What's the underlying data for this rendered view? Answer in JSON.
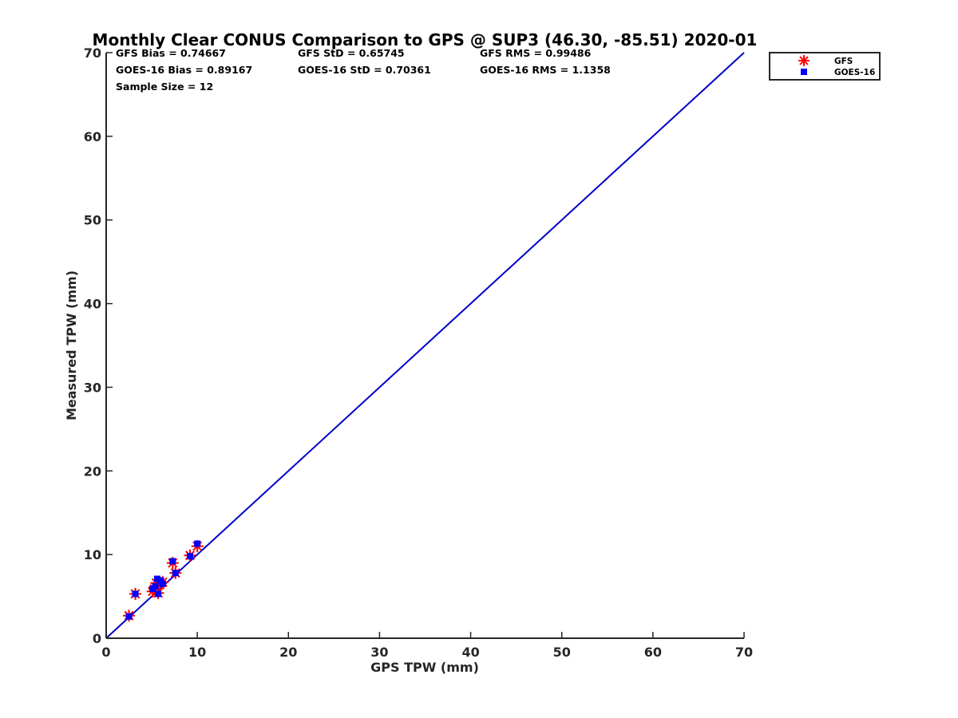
{
  "chart_data": {
    "type": "scatter",
    "title": "Monthly Clear CONUS Comparison to GPS @ SUP3 (46.30, -85.51) 2020-01",
    "xlabel": "GPS TPW (mm)",
    "ylabel": "Measured TPW (mm)",
    "xlim": [
      0,
      70
    ],
    "ylim": [
      0,
      70
    ],
    "x_ticks": [
      "0",
      "10",
      "20",
      "30",
      "40",
      "50",
      "60",
      "70"
    ],
    "y_ticks": [
      "0",
      "10",
      "20",
      "30",
      "40",
      "50",
      "60",
      "70"
    ],
    "grid": false,
    "legend_position": "top-right, outside plot",
    "stats": [
      [
        "GFS Bias = 0.74667",
        "GFS StD = 0.65745",
        "GFS RMS = 0.99486"
      ],
      [
        "GOES-16 Bias = 0.89167",
        "GOES-16 StD = 0.70361",
        "GOES-16 RMS = 1.1358"
      ],
      [
        "Sample Size = 12"
      ]
    ],
    "reference_line": {
      "name": "1:1",
      "from": [
        0,
        0
      ],
      "to": [
        70,
        70
      ],
      "color": "#0000cc"
    },
    "series": [
      {
        "name": "GFS",
        "marker": "asterisk",
        "color": "#ff0000",
        "points": [
          [
            2.5,
            2.7
          ],
          [
            3.2,
            5.3
          ],
          [
            5.1,
            5.6
          ],
          [
            5.5,
            6.6
          ],
          [
            5.7,
            5.4
          ],
          [
            5.9,
            6.4
          ],
          [
            6.2,
            6.7
          ],
          [
            7.3,
            9.0
          ],
          [
            7.6,
            7.8
          ],
          [
            9.2,
            9.9
          ],
          [
            10.0,
            11.0
          ],
          [
            5.3,
            5.9
          ]
        ]
      },
      {
        "name": "GOES-16",
        "marker": "square",
        "color": "#0000ff",
        "points": [
          [
            2.5,
            2.6
          ],
          [
            3.2,
            5.3
          ],
          [
            5.1,
            5.9
          ],
          [
            5.6,
            7.1
          ],
          [
            5.7,
            5.3
          ],
          [
            6.0,
            6.9
          ],
          [
            6.2,
            6.5
          ],
          [
            7.3,
            9.2
          ],
          [
            7.6,
            7.8
          ],
          [
            9.2,
            9.8
          ],
          [
            10.0,
            11.3
          ],
          [
            5.4,
            6.2
          ]
        ]
      }
    ]
  }
}
